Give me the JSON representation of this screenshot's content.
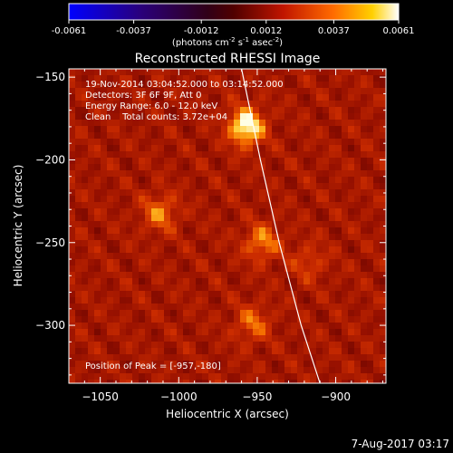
{
  "colorbar": {
    "ticks": [
      "-0.0061",
      "-0.0037",
      "-0.0012",
      "0.0012",
      "0.0037",
      "0.0061"
    ],
    "tick_values": [
      -0.0061,
      -0.0037,
      -0.0012,
      0.0012,
      0.0037,
      0.0061
    ],
    "range": [
      -0.0061,
      0.0061
    ],
    "units_main": "(photons cm",
    "units_sup1": "-2",
    "units_mid": " s",
    "units_sup2": "-1",
    "units_end": " asec",
    "units_sup3": "-2",
    "units_close": ")"
  },
  "chart_data": {
    "type": "heatmap",
    "title": "Reconstructed RHESSI Image",
    "xlabel": "Heliocentric X (arcsec)",
    "ylabel": "Heliocentric Y (arcsec)",
    "xlim": [
      -1070,
      -868
    ],
    "ylim": [
      -335,
      -145
    ],
    "xticks": [
      -1050,
      -1000,
      -950,
      -900
    ],
    "xtick_labels": [
      "−1050",
      "−1000",
      "−950",
      "−900"
    ],
    "yticks": [
      -150,
      -200,
      -250,
      -300
    ],
    "ytick_labels": [
      "−150",
      "−200",
      "−250",
      "−300"
    ],
    "annotations": [
      "19-Nov-2014 03:04:52.000 to 03:14:52.000",
      "Detectors: 3F 6F 9F, Att 0",
      "Energy Range: 6.0 - 12.0 keV",
      "Clean    Total counts: 3.72e+04"
    ],
    "peak_label": "Position of Peak = [-957,-180]",
    "peak": [
      -957,
      -180
    ],
    "sources": [
      {
        "x": -957,
        "y": -180,
        "intensity": 1.0
      },
      {
        "x": -947,
        "y": -250,
        "intensity": 0.55
      },
      {
        "x": -1012,
        "y": -232,
        "intensity": 0.5
      },
      {
        "x": -953,
        "y": -299,
        "intensity": 0.45
      },
      {
        "x": -917,
        "y": -262,
        "intensity": 0.3
      }
    ],
    "limb_curve": [
      [
        -960,
        -145
      ],
      [
        -948,
        -200
      ],
      [
        -936,
        -250
      ],
      [
        -922,
        -300
      ],
      [
        -910,
        -335
      ]
    ],
    "grid": false
  },
  "footer": {
    "date": "7-Aug-2017 03:17"
  }
}
